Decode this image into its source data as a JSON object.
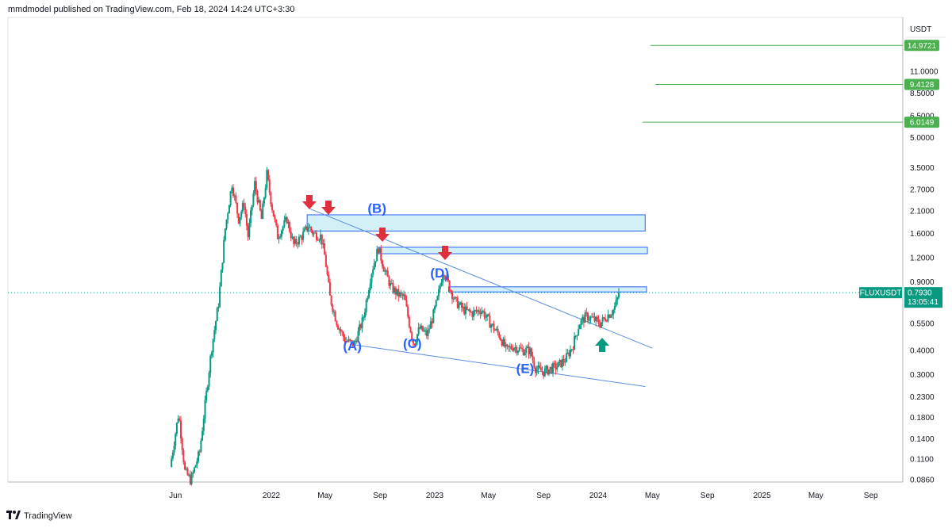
{
  "header": {
    "publisher": "mmdmodel published on TradingView.com, Feb 18, 2024 14:24 UTC+3:30"
  },
  "footer": {
    "brand": "TradingView",
    "logo_icon": "tradingview-logo-icon"
  },
  "chart_data": {
    "type": "candlestick",
    "symbol": "FLUXUSDT",
    "currency": "USDT",
    "scale": "log",
    "ylim": [
      0.075,
      18
    ],
    "y_ticks": [
      "11.0000",
      "8.5000",
      "6.5000",
      "5.0000",
      "3.5000",
      "2.7000",
      "2.1000",
      "1.6000",
      "1.2000",
      "0.9000",
      "0.5500",
      "0.4000",
      "0.3000",
      "0.2300",
      "0.1800",
      "0.1400",
      "0.1100",
      "0.0860"
    ],
    "x_ticks": [
      "Jun",
      "2022",
      "May",
      "Sep",
      "2023",
      "May",
      "Sep",
      "2024",
      "May",
      "Sep",
      "2025",
      "May",
      "Sep"
    ],
    "last_price": {
      "label": "FLUXUSDT",
      "value": "0.7930",
      "countdown": "13:05:41",
      "color": "#089981"
    },
    "targets": [
      {
        "value": "14.9721",
        "color": "#4caf50"
      },
      {
        "value": "9.4128",
        "color": "#4caf50"
      },
      {
        "value": "6.0149",
        "color": "#4caf50"
      }
    ],
    "wave_labels": [
      "(A)",
      "(B)",
      "(C)",
      "(D)",
      "(E)"
    ],
    "colors": {
      "up": "#089981",
      "down": "#f23645",
      "trendline": "#5b8ddc",
      "zone_fill": "#cdeef5",
      "zone_border": "#2962ff",
      "arrow_down": "#e03040",
      "arrow_up": "#089981"
    },
    "anchors": [
      [
        "2021-05-20",
        0.1
      ],
      [
        "2021-06-08",
        0.19
      ],
      [
        "2021-06-22",
        0.095
      ],
      [
        "2021-07-05",
        0.085
      ],
      [
        "2021-07-25",
        0.12
      ],
      [
        "2021-08-20",
        0.4
      ],
      [
        "2021-09-05",
        0.7
      ],
      [
        "2021-09-20",
        1.7
      ],
      [
        "2021-10-05",
        2.9
      ],
      [
        "2021-10-20",
        1.9
      ],
      [
        "2021-11-01",
        2.3
      ],
      [
        "2021-11-10",
        1.55
      ],
      [
        "2021-11-25",
        2.9
      ],
      [
        "2021-12-10",
        1.9
      ],
      [
        "2021-12-22",
        3.25
      ],
      [
        "2022-01-01",
        2.3
      ],
      [
        "2022-01-15",
        1.55
      ],
      [
        "2022-02-05",
        1.9
      ],
      [
        "2022-02-20",
        1.4
      ],
      [
        "2022-03-10",
        1.55
      ],
      [
        "2022-03-25",
        1.75
      ],
      [
        "2022-04-05",
        1.6
      ],
      [
        "2022-04-22",
        1.55
      ],
      [
        "2022-05-01",
        1.2
      ],
      [
        "2022-05-12",
        0.75
      ],
      [
        "2022-05-28",
        0.55
      ],
      [
        "2022-06-15",
        0.45
      ],
      [
        "2022-07-05",
        0.43
      ],
      [
        "2022-07-25",
        0.58
      ],
      [
        "2022-08-12",
        1.0
      ],
      [
        "2022-08-28",
        1.35
      ],
      [
        "2022-09-10",
        1.05
      ],
      [
        "2022-09-25",
        0.85
      ],
      [
        "2022-10-10",
        0.78
      ],
      [
        "2022-10-25",
        0.75
      ],
      [
        "2022-11-05",
        0.55
      ],
      [
        "2022-11-15",
        0.43
      ],
      [
        "2022-11-28",
        0.52
      ],
      [
        "2022-12-15",
        0.48
      ],
      [
        "2022-12-28",
        0.6
      ],
      [
        "2023-01-08",
        0.75
      ],
      [
        "2023-01-20",
        1.05
      ],
      [
        "2023-01-30",
        0.9
      ],
      [
        "2023-02-15",
        0.72
      ],
      [
        "2023-03-05",
        0.65
      ],
      [
        "2023-03-25",
        0.62
      ],
      [
        "2023-04-15",
        0.65
      ],
      [
        "2023-05-05",
        0.55
      ],
      [
        "2023-05-25",
        0.48
      ],
      [
        "2023-06-10",
        0.4
      ],
      [
        "2023-06-25",
        0.42
      ],
      [
        "2023-07-15",
        0.4
      ],
      [
        "2023-08-01",
        0.4
      ],
      [
        "2023-08-15",
        0.32
      ],
      [
        "2023-09-01",
        0.31
      ],
      [
        "2023-09-15",
        0.32
      ],
      [
        "2023-10-01",
        0.33
      ],
      [
        "2023-10-20",
        0.36
      ],
      [
        "2023-11-05",
        0.42
      ],
      [
        "2023-11-20",
        0.55
      ],
      [
        "2023-12-05",
        0.6
      ],
      [
        "2023-12-20",
        0.58
      ],
      [
        "2024-01-05",
        0.55
      ],
      [
        "2024-01-20",
        0.6
      ],
      [
        "2024-02-05",
        0.65
      ],
      [
        "2024-02-18",
        0.793
      ]
    ],
    "trendlines": [
      {
        "from": [
          "2022-03-28",
          2.15
        ],
        "to": [
          "2024-05-01",
          0.41
        ]
      },
      {
        "from": [
          "2022-06-25",
          0.43
        ],
        "to": [
          "2024-04-15",
          0.26
        ]
      }
    ],
    "zones": [
      {
        "from": "2022-03-22",
        "to": "2024-04-15",
        "low": 1.65,
        "high": 2.0
      },
      {
        "from": "2022-08-28",
        "to": "2024-04-20",
        "low": 1.26,
        "high": 1.36
      },
      {
        "from": "2023-02-01",
        "to": "2024-04-18",
        "low": 0.8,
        "high": 0.85
      }
    ]
  }
}
